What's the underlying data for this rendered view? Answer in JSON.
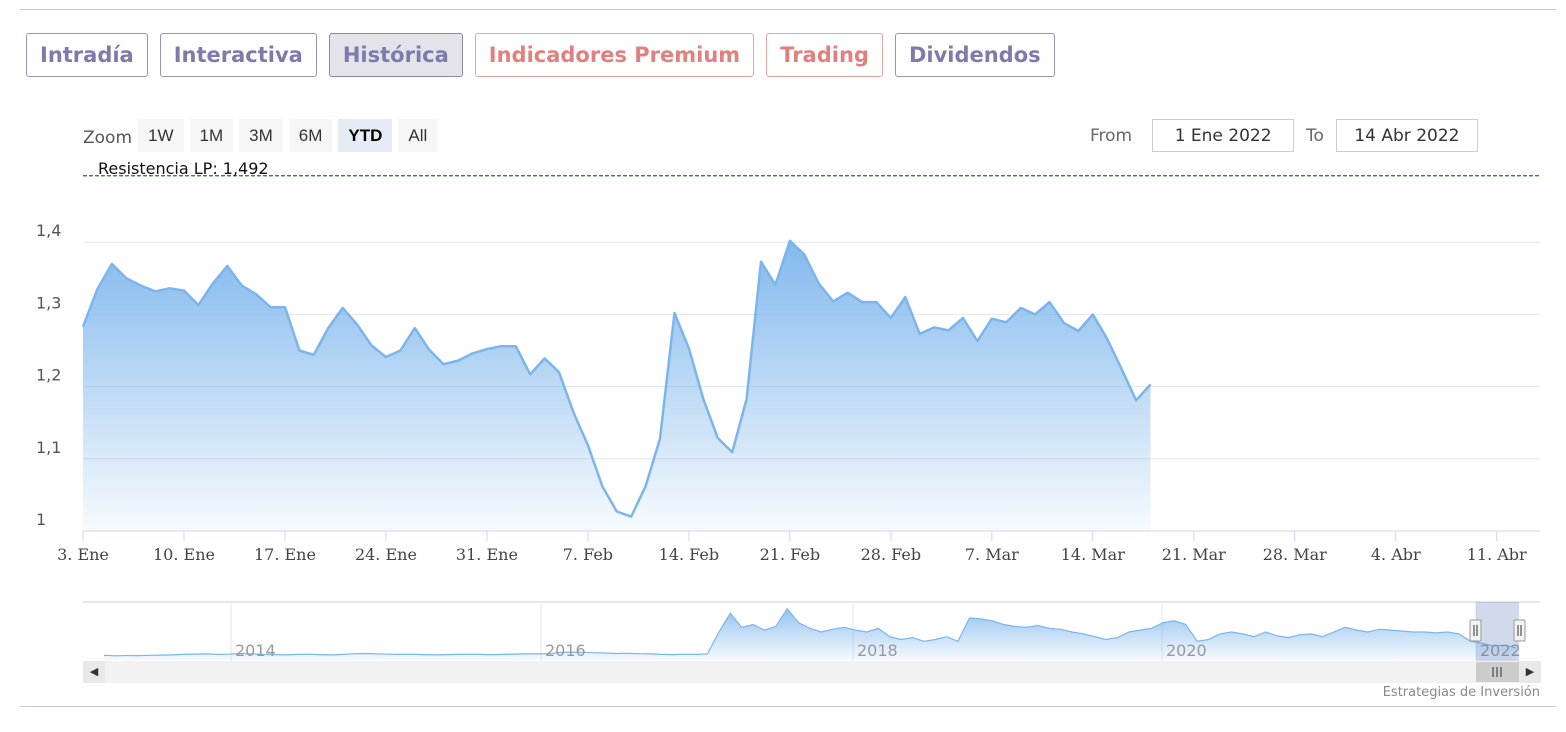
{
  "tabs": [
    {
      "label": "Intradía",
      "active": false,
      "premium": false
    },
    {
      "label": "Interactiva",
      "active": false,
      "premium": false
    },
    {
      "label": "Histórica",
      "active": true,
      "premium": false
    },
    {
      "label": "Indicadores Premium",
      "active": false,
      "premium": true
    },
    {
      "label": "Trading",
      "active": false,
      "premium": true
    },
    {
      "label": "Dividendos",
      "active": false,
      "premium": false
    }
  ],
  "zoom": {
    "label": "Zoom",
    "buttons": [
      "1W",
      "1M",
      "3M",
      "6M",
      "YTD",
      "All"
    ],
    "selected": "YTD"
  },
  "range": {
    "from_label": "From",
    "from_value": "1 Ene 2022",
    "to_label": "To",
    "to_value": "14 Abr 2022"
  },
  "credit": "Estrategias de Inversión",
  "colors": {
    "line": "#7cb5ec",
    "resistance": "#1e7a1e",
    "tab_text": "#7f79ac",
    "premium_text": "#e0817f"
  },
  "chart_data": {
    "type": "area",
    "resistance": {
      "label": "Resistencia LP: 1,492",
      "value": 1.492
    },
    "y_ticks": [
      {
        "value": 1.0,
        "label": "1"
      },
      {
        "value": 1.1,
        "label": "1,1"
      },
      {
        "value": 1.2,
        "label": "1,2"
      },
      {
        "value": 1.3,
        "label": "1,3"
      },
      {
        "value": 1.4,
        "label": "1,4"
      }
    ],
    "ylim": [
      1.0,
      1.5
    ],
    "x_ticks": [
      {
        "date": "2022-01-03",
        "label": "3. Ene"
      },
      {
        "date": "2022-01-10",
        "label": "10. Ene"
      },
      {
        "date": "2022-01-17",
        "label": "17. Ene"
      },
      {
        "date": "2022-01-24",
        "label": "24. Ene"
      },
      {
        "date": "2022-01-31",
        "label": "31. Ene"
      },
      {
        "date": "2022-02-07",
        "label": "7. Feb"
      },
      {
        "date": "2022-02-14",
        "label": "14. Feb"
      },
      {
        "date": "2022-02-21",
        "label": "21. Feb"
      },
      {
        "date": "2022-02-28",
        "label": "28. Feb"
      },
      {
        "date": "2022-03-07",
        "label": "7. Mar"
      },
      {
        "date": "2022-03-14",
        "label": "14. Mar"
      },
      {
        "date": "2022-03-21",
        "label": "21. Mar"
      },
      {
        "date": "2022-03-28",
        "label": "28. Mar"
      },
      {
        "date": "2022-04-04",
        "label": "4. Abr"
      },
      {
        "date": "2022-04-11",
        "label": "11. Abr"
      }
    ],
    "xlim": [
      "2022-01-03",
      "2022-04-14"
    ],
    "series": [
      {
        "values": [
          [
            "2022-01-03",
            1.283
          ],
          [
            "2022-01-04",
            1.335
          ],
          [
            "2022-01-05",
            1.37
          ],
          [
            "2022-01-06",
            1.35
          ],
          [
            "2022-01-07",
            1.34
          ],
          [
            "2022-01-08",
            1.332
          ],
          [
            "2022-01-09",
            1.336
          ],
          [
            "2022-01-10",
            1.333
          ],
          [
            "2022-01-11",
            1.313
          ],
          [
            "2022-01-12",
            1.343
          ],
          [
            "2022-01-13",
            1.367
          ],
          [
            "2022-01-14",
            1.34
          ],
          [
            "2022-01-15",
            1.328
          ],
          [
            "2022-01-16",
            1.31
          ],
          [
            "2022-01-17",
            1.31
          ],
          [
            "2022-01-18",
            1.25
          ],
          [
            "2022-01-19",
            1.244
          ],
          [
            "2022-01-20",
            1.281
          ],
          [
            "2022-01-21",
            1.309
          ],
          [
            "2022-01-22",
            1.286
          ],
          [
            "2022-01-23",
            1.257
          ],
          [
            "2022-01-24",
            1.241
          ],
          [
            "2022-01-25",
            1.25
          ],
          [
            "2022-01-26",
            1.281
          ],
          [
            "2022-01-27",
            1.251
          ],
          [
            "2022-01-28",
            1.231
          ],
          [
            "2022-01-29",
            1.236
          ],
          [
            "2022-01-30",
            1.246
          ],
          [
            "2022-01-31",
            1.252
          ],
          [
            "2022-02-01",
            1.256
          ],
          [
            "2022-02-02",
            1.256
          ],
          [
            "2022-02-03",
            1.217
          ],
          [
            "2022-02-04",
            1.239
          ],
          [
            "2022-02-05",
            1.22
          ],
          [
            "2022-02-06",
            1.164
          ],
          [
            "2022-02-07",
            1.119
          ],
          [
            "2022-02-08",
            1.062
          ],
          [
            "2022-02-09",
            1.027
          ],
          [
            "2022-02-10",
            1.02
          ],
          [
            "2022-02-11",
            1.062
          ],
          [
            "2022-02-12",
            1.128
          ],
          [
            "2022-02-13",
            1.302
          ],
          [
            "2022-02-14",
            1.253
          ],
          [
            "2022-02-15",
            1.183
          ],
          [
            "2022-02-16",
            1.129
          ],
          [
            "2022-02-17",
            1.109
          ],
          [
            "2022-02-18",
            1.183
          ],
          [
            "2022-02-19",
            1.373
          ],
          [
            "2022-02-20",
            1.341
          ],
          [
            "2022-02-21",
            1.402
          ],
          [
            "2022-02-22",
            1.383
          ],
          [
            "2022-02-23",
            1.343
          ],
          [
            "2022-02-24",
            1.318
          ],
          [
            "2022-02-25",
            1.33
          ],
          [
            "2022-02-26",
            1.317
          ],
          [
            "2022-02-27",
            1.317
          ],
          [
            "2022-02-28",
            1.295
          ],
          [
            "2022-03-01",
            1.324
          ],
          [
            "2022-03-02",
            1.273
          ],
          [
            "2022-03-03",
            1.282
          ],
          [
            "2022-03-04",
            1.278
          ],
          [
            "2022-03-05",
            1.295
          ],
          [
            "2022-03-06",
            1.263
          ],
          [
            "2022-03-07",
            1.294
          ],
          [
            "2022-03-08",
            1.289
          ],
          [
            "2022-03-09",
            1.309
          ],
          [
            "2022-03-10",
            1.3
          ],
          [
            "2022-03-11",
            1.317
          ],
          [
            "2022-03-12",
            1.288
          ],
          [
            "2022-03-13",
            1.277
          ],
          [
            "2022-03-14",
            1.3
          ],
          [
            "2022-03-15",
            1.266
          ],
          [
            "2022-03-16",
            1.224
          ],
          [
            "2022-03-17",
            1.181
          ],
          [
            "2022-03-18",
            1.203
          ]
        ]
      }
    ],
    "navigator": {
      "year_labels": [
        "2014",
        "2016",
        "2018",
        "2020",
        "2022"
      ],
      "values": [
        1.05,
        1.045,
        1.048,
        1.046,
        1.05,
        1.052,
        1.055,
        1.06,
        1.063,
        1.065,
        1.06,
        1.062,
        1.07,
        1.065,
        1.06,
        1.058,
        1.055,
        1.06,
        1.062,
        1.058,
        1.055,
        1.06,
        1.068,
        1.07,
        1.066,
        1.062,
        1.06,
        1.062,
        1.058,
        1.055,
        1.058,
        1.06,
        1.062,
        1.06,
        1.058,
        1.06,
        1.063,
        1.065,
        1.068,
        1.066,
        1.08,
        1.085,
        1.082,
        1.078,
        1.075,
        1.07,
        1.072,
        1.068,
        1.065,
        1.06,
        1.058,
        1.062,
        1.06,
        1.065,
        1.3,
        1.5,
        1.35,
        1.38,
        1.32,
        1.36,
        1.55,
        1.4,
        1.34,
        1.3,
        1.33,
        1.35,
        1.32,
        1.3,
        1.34,
        1.25,
        1.22,
        1.24,
        1.2,
        1.22,
        1.25,
        1.2,
        1.45,
        1.44,
        1.42,
        1.38,
        1.36,
        1.35,
        1.37,
        1.34,
        1.33,
        1.3,
        1.28,
        1.25,
        1.22,
        1.24,
        1.3,
        1.32,
        1.34,
        1.4,
        1.42,
        1.38,
        1.2,
        1.22,
        1.28,
        1.3,
        1.28,
        1.25,
        1.3,
        1.26,
        1.24,
        1.27,
        1.28,
        1.25,
        1.3,
        1.35,
        1.32,
        1.3,
        1.33,
        1.32,
        1.31,
        1.3,
        1.3,
        1.29,
        1.3,
        1.28,
        1.2,
        1.18,
        1.15,
        1.16,
        1.13
      ]
    }
  }
}
